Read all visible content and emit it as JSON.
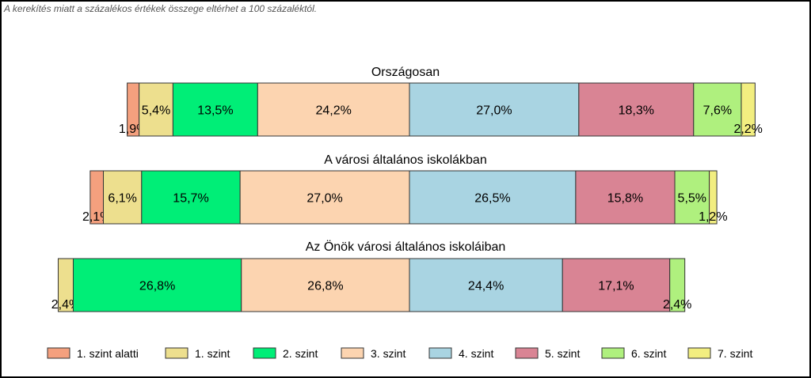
{
  "note": "A kerekítés miatt a  százalékos értékek összege eltérhet a 100 százaléktól.",
  "chart_data": {
    "type": "bar",
    "stacked": true,
    "orientation": "horizontal",
    "centered_at": "boundary between 3. szint and 4. szint",
    "series": [
      {
        "name": "1. szint alatti",
        "color": "#F4A07E"
      },
      {
        "name": "1. szint",
        "color": "#EDDF8E"
      },
      {
        "name": "2. szint",
        "color": "#00EE77"
      },
      {
        "name": "3. szint",
        "color": "#FCD4B0"
      },
      {
        "name": "4. szint",
        "color": "#A9D4E2"
      },
      {
        "name": "5. szint",
        "color": "#D98494"
      },
      {
        "name": "6. szint",
        "color": "#AFF07E"
      },
      {
        "name": "7. szint",
        "color": "#F2EE80"
      }
    ],
    "groups": [
      {
        "title": "Országosan",
        "values": [
          1.9,
          5.4,
          13.5,
          24.2,
          27.0,
          18.3,
          7.6,
          2.2
        ],
        "labels": [
          "1,9%",
          "5,4%",
          "13,5%",
          "24,2%",
          "27,0%",
          "18,3%",
          "7,6%",
          "2,2%"
        ]
      },
      {
        "title": "A városi általános iskolákban",
        "values": [
          2.1,
          6.1,
          15.7,
          27.0,
          26.5,
          15.8,
          5.5,
          1.2
        ],
        "labels": [
          "2,1%",
          "6,1%",
          "15,7%",
          "27,0%",
          "26,5%",
          "15,8%",
          "5,5%",
          "1,2%"
        ]
      },
      {
        "title": "Az Önök városi általános iskoláiban",
        "values": [
          0,
          2.4,
          26.8,
          26.8,
          24.4,
          17.1,
          2.4,
          0
        ],
        "labels": [
          "",
          "2,4%",
          "26,8%",
          "26,8%",
          "24,4%",
          "17,1%",
          "2,4%",
          ""
        ]
      }
    ],
    "legend_position": "bottom"
  }
}
